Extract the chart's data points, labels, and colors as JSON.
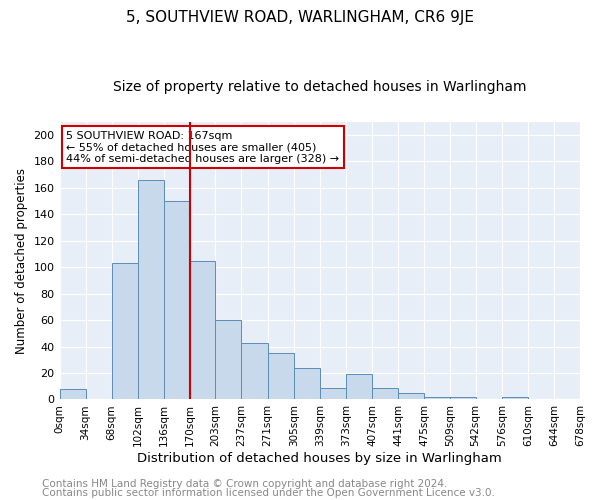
{
  "title": "5, SOUTHVIEW ROAD, WARLINGHAM, CR6 9JE",
  "subtitle": "Size of property relative to detached houses in Warlingham",
  "xlabel": "Distribution of detached houses by size in Warlingham",
  "ylabel": "Number of detached properties",
  "bin_edges": [
    0,
    34,
    68,
    102,
    136,
    170,
    203,
    237,
    271,
    305,
    339,
    373,
    407,
    441,
    475,
    509,
    542,
    576,
    610,
    644,
    678
  ],
  "bin_counts": [
    8,
    0,
    103,
    166,
    150,
    105,
    60,
    43,
    35,
    24,
    9,
    19,
    9,
    5,
    2,
    2,
    0,
    2,
    0,
    0
  ],
  "bar_color": "#c9d9ec",
  "bar_edge_color": "#5b8db8",
  "vline_x": 170,
  "vline_color": "#cc0000",
  "annotation_text": "5 SOUTHVIEW ROAD: 167sqm\n← 55% of detached houses are smaller (405)\n44% of semi-detached houses are larger (328) →",
  "annotation_box_color": "white",
  "annotation_box_edge_color": "#cc0000",
  "ylim": [
    0,
    210
  ],
  "yticks": [
    0,
    20,
    40,
    60,
    80,
    100,
    120,
    140,
    160,
    180,
    200
  ],
  "tick_labels": [
    "0sqm",
    "34sqm",
    "68sqm",
    "102sqm",
    "136sqm",
    "170sqm",
    "203sqm",
    "237sqm",
    "271sqm",
    "305sqm",
    "339sqm",
    "373sqm",
    "407sqm",
    "441sqm",
    "475sqm",
    "509sqm",
    "542sqm",
    "576sqm",
    "610sqm",
    "644sqm",
    "678sqm"
  ],
  "footer1": "Contains HM Land Registry data © Crown copyright and database right 2024.",
  "footer2": "Contains public sector information licensed under the Open Government Licence v3.0.",
  "background_color": "#ffffff",
  "plot_bg_color": "#e8eef7",
  "grid_color": "#ffffff",
  "title_fontsize": 11,
  "subtitle_fontsize": 10,
  "xlabel_fontsize": 9.5,
  "ylabel_fontsize": 8.5,
  "footer_fontsize": 7.5
}
